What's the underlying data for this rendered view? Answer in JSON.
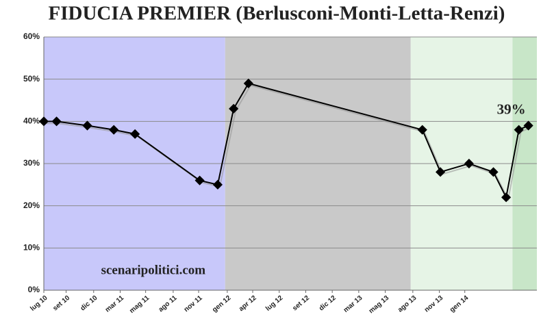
{
  "chart_data": {
    "type": "line",
    "title": "FIDUCIA PREMIER (Berlusconi-Monti-Letta-Renzi)",
    "x": [
      0,
      1.2,
      4.1,
      6.6,
      8.6,
      14.7,
      16.4,
      17.9,
      19.3,
      35.7,
      37.4,
      40.1,
      42.4,
      43.6,
      44.8,
      45.7
    ],
    "series": [
      {
        "color": "#000000",
        "values": [
          40,
          40,
          39,
          38,
          37,
          26,
          25,
          43,
          49,
          38,
          28,
          30,
          28,
          22,
          38,
          39
        ]
      }
    ],
    "xlim": [
      0,
      46.5
    ],
    "xticks": [
      {
        "value": 0,
        "label": "lug 10"
      },
      {
        "value": 2.1,
        "label": "set 10"
      },
      {
        "value": 4.7,
        "label": "dic 10"
      },
      {
        "value": 7.2,
        "label": "mar 11"
      },
      {
        "value": 9.6,
        "label": "mag 11"
      },
      {
        "value": 12.2,
        "label": "ago 11"
      },
      {
        "value": 14.6,
        "label": "nov 11"
      },
      {
        "value": 17.3,
        "label": "gen 12"
      },
      {
        "value": 19.7,
        "label": "apr 12"
      },
      {
        "value": 22.2,
        "label": "lug 12"
      },
      {
        "value": 24.7,
        "label": "set 12"
      },
      {
        "value": 27.2,
        "label": "dic 12"
      },
      {
        "value": 29.7,
        "label": "mar 13"
      },
      {
        "value": 32.2,
        "label": "mag 13"
      },
      {
        "value": 34.8,
        "label": "ago 13"
      },
      {
        "value": 37.3,
        "label": "nov 13"
      },
      {
        "value": 39.7,
        "label": "gen 14"
      }
    ],
    "ylim": [
      0,
      60
    ],
    "yticks": [
      {
        "value": 0,
        "label": "0%"
      },
      {
        "value": 10,
        "label": "10%"
      },
      {
        "value": 20,
        "label": "20%"
      },
      {
        "value": 30,
        "label": "30%"
      },
      {
        "value": 40,
        "label": "40%"
      },
      {
        "value": 50,
        "label": "50%"
      },
      {
        "value": 60,
        "label": "60%"
      }
    ],
    "grid": true,
    "bands": [
      {
        "from": 0,
        "to": 17.1,
        "color": "#c8c8fa"
      },
      {
        "from": 17.1,
        "to": 34.6,
        "color": "#c9c9c9"
      },
      {
        "from": 34.6,
        "to": 44.2,
        "color": "#e6f4e6"
      },
      {
        "from": 44.2,
        "to": 46.5,
        "color": "#c8e6c8"
      }
    ],
    "annotations": [
      {
        "text": "39%",
        "x": 45.7,
        "y": 39
      },
      {
        "text": "scenaripolitici.com",
        "x": 5.4,
        "y": 4.5
      }
    ]
  }
}
